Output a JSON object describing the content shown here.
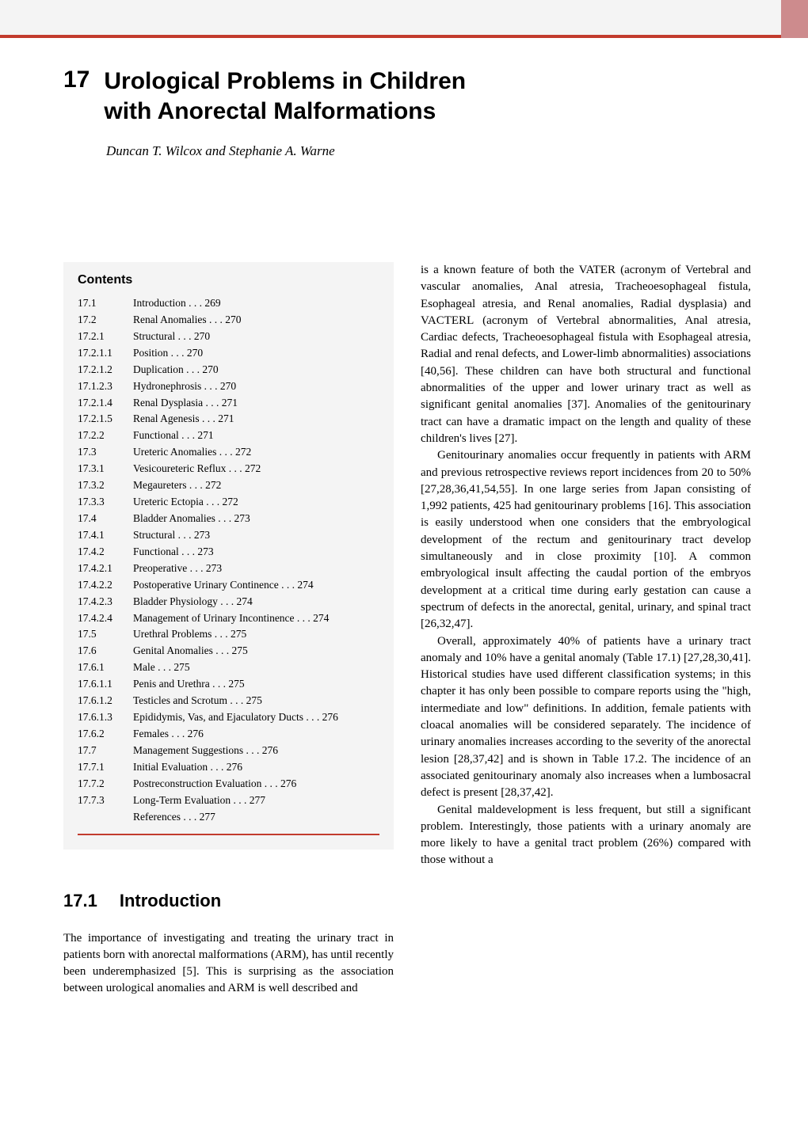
{
  "chapter": {
    "number": "17",
    "title_line1": "Urological Problems in Children",
    "title_line2": "with Anorectal Malformations",
    "authors": "Duncan T. Wilcox and Stephanie A. Warne"
  },
  "contents_heading": "Contents",
  "toc": [
    {
      "n": "17.1",
      "t": "Introduction . . .  269"
    },
    {
      "n": "17.2",
      "t": "Renal Anomalies . . .  270"
    },
    {
      "n": "17.2.1",
      "t": "Structural . . .  270"
    },
    {
      "n": "17.2.1.1",
      "t": "Position . . .  270"
    },
    {
      "n": "17.2.1.2",
      "t": "Duplication . . .  270"
    },
    {
      "n": "17.1.2.3",
      "t": "Hydronephrosis . . .  270"
    },
    {
      "n": "17.2.1.4",
      "t": "Renal Dysplasia . . .  271"
    },
    {
      "n": "17.2.1.5",
      "t": "Renal Agenesis . . .  271"
    },
    {
      "n": "17.2.2",
      "t": "Functional . . .  271"
    },
    {
      "n": "17.3",
      "t": "Ureteric Anomalies . . .  272"
    },
    {
      "n": "17.3.1",
      "t": "Vesicoureteric Reflux . . .  272"
    },
    {
      "n": "17.3.2",
      "t": "Megaureters . . .  272"
    },
    {
      "n": "17.3.3",
      "t": "Ureteric Ectopia . . .  272"
    },
    {
      "n": "17.4",
      "t": "Bladder Anomalies . . .  273"
    },
    {
      "n": "17.4.1",
      "t": "Structural . . .  273"
    },
    {
      "n": "17.4.2",
      "t": "Functional . . .  273"
    },
    {
      "n": "17.4.2.1",
      "t": "Preoperative . . .  273"
    },
    {
      "n": "17.4.2.2",
      "t": "Postoperative Urinary Continence . . .  274"
    },
    {
      "n": "17.4.2.3",
      "t": "Bladder Physiology . . .  274"
    },
    {
      "n": "17.4.2.4",
      "t": "Management of Urinary Incontinence . . .  274"
    },
    {
      "n": "17.5",
      "t": "Urethral Problems . . .  275"
    },
    {
      "n": "17.6",
      "t": "Genital Anomalies . . .  275"
    },
    {
      "n": "17.6.1",
      "t": "Male . . .  275"
    },
    {
      "n": "17.6.1.1",
      "t": "Penis and Urethra . . .  275"
    },
    {
      "n": "17.6.1.2",
      "t": "Testicles and Scrotum . . .  275"
    },
    {
      "n": "17.6.1.3",
      "t": "Epididymis, Vas, and Ejaculatory Ducts . . .  276"
    },
    {
      "n": "17.6.2",
      "t": "Females . . .  276"
    },
    {
      "n": "17.7",
      "t": "Management Suggestions . . .  276"
    },
    {
      "n": "17.7.1",
      "t": "Initial Evaluation . . .  276"
    },
    {
      "n": "17.7.2",
      "t": "Postreconstruction Evaluation . . .  276"
    },
    {
      "n": "17.7.3",
      "t": "Long-Term Evaluation . . .  277"
    },
    {
      "n": "",
      "t": "References . . .  277"
    }
  ],
  "section": {
    "num": "17.1",
    "title": "Introduction"
  },
  "left_para": "The importance of investigating and treating the urinary tract in patients born with anorectal malformations (ARM), has until recently been underemphasized [5]. This is surprising as the association between urological anomalies and ARM is well described and",
  "right_paras": [
    "is a known feature of both the VATER (acronym of Vertebral and vascular anomalies, Anal atresia, Tracheoesophageal fistula, Esophageal atresia, and Renal anomalies, Radial dysplasia) and VACTERL (acronym of Vertebral abnormalities, Anal atresia, Cardiac defects, Tracheoesophageal fistula with Esophageal atresia, Radial and renal defects, and Lower-limb abnormalities) associations [40,56]. These children can have both structural and functional abnormalities of the upper and lower urinary tract as well as significant genital anomalies [37]. Anomalies of the genitourinary tract can have a dramatic impact on the length and quality of these children's lives [27].",
    "Genitourinary anomalies occur frequently in patients with ARM and previous retrospective reviews report incidences from 20 to 50% [27,28,36,41,54,55]. In one large series from Japan consisting of 1,992 patients, 425 had genitourinary problems [16]. This association is easily understood when one considers that the embryological development of the rectum and genitourinary tract develop simultaneously and in close proximity [10]. A common embryological insult affecting the caudal portion of the embryos development at a critical time during early gestation can cause a spectrum of defects in the anorectal, genital, urinary, and spinal tract [26,32,47].",
    "Overall, approximately 40% of patients have a urinary tract anomaly and 10% have a genital anomaly (Table 17.1) [27,28,30,41]. Historical studies have used different classification systems; in this chapter it has only been possible to compare reports using the \"high, intermediate and low\" definitions. In addition, female patients with cloacal anomalies will be considered separately. The incidence of urinary anomalies increases according to the severity of the anorectal lesion [28,37,42] and is shown in Table 17.2. The incidence of an associated genitourinary anomaly also increases when a lumbosacral defect is present [28,37,42].",
    "Genital maldevelopment is less frequent, but still a significant problem. Interestingly, those patients with a urinary anomaly are more likely to have a genital tract problem (26%) compared with those without a"
  ],
  "colors": {
    "accent": "#c23b2d",
    "panel": "#f4f4f4",
    "corner": "#cd8b8d"
  }
}
